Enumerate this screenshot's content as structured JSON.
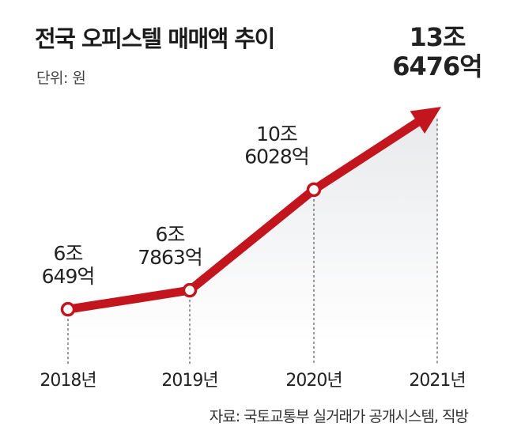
{
  "header": {
    "title": "전국 오피스텔 매매액 추이",
    "unit": "단위: 원"
  },
  "footer": {
    "source": "자료: 국토교통부 실거래가 공개시스템, 직방"
  },
  "colors": {
    "line": "#c3151d",
    "area_top": "#e8e9ec",
    "area_bottom": "#ffffff",
    "guide": "#555555"
  },
  "chart_data": {
    "type": "line",
    "title": "전국 오피스텔 매매액 추이",
    "unit": "원",
    "categories": [
      "2018년",
      "2019년",
      "2020년",
      "2021년"
    ],
    "values": [
      60649,
      67863,
      106028,
      136476
    ],
    "value_unit": "억 원",
    "labels": [
      [
        "6조",
        "649억"
      ],
      [
        "6조",
        "7863억"
      ],
      [
        "10조",
        "6028억"
      ],
      [
        "13조",
        "6476억"
      ]
    ],
    "ylim": [
      40000,
      145000
    ],
    "grid": false,
    "legend": "none",
    "last_point_arrow": true
  }
}
